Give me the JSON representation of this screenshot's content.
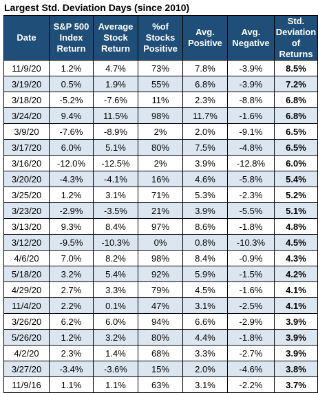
{
  "title": "Largest Std. Deviation Days (since 2010)",
  "headers": [
    "Date",
    "S&P 500 Index Return",
    "Average Stock Return",
    "%of Stocks Positive",
    "Avg. Positive",
    "Avg. Negative",
    "Std. Deviation of Returns"
  ],
  "rows": [
    [
      "11/9/20",
      "1.2%",
      "4.7%",
      "73%",
      "7.8%",
      "-3.9%",
      "8.5%"
    ],
    [
      "3/19/20",
      "0.5%",
      "1.9%",
      "55%",
      "6.8%",
      "-3.9%",
      "7.2%"
    ],
    [
      "3/18/20",
      "-5.2%",
      "-7.6%",
      "11%",
      "2.3%",
      "-8.8%",
      "6.8%"
    ],
    [
      "3/24/20",
      "9.4%",
      "11.5%",
      "98%",
      "11.7%",
      "-1.6%",
      "6.8%"
    ],
    [
      "3/9/20",
      "-7.6%",
      "-8.9%",
      "2%",
      "2.0%",
      "-9.1%",
      "6.5%"
    ],
    [
      "3/17/20",
      "6.0%",
      "5.1%",
      "80%",
      "7.5%",
      "-4.8%",
      "6.5%"
    ],
    [
      "3/16/20",
      "-12.0%",
      "-12.5%",
      "2%",
      "3.9%",
      "-12.8%",
      "6.0%"
    ],
    [
      "3/20/20",
      "-4.3%",
      "-4.1%",
      "16%",
      "4.6%",
      "-5.8%",
      "5.4%"
    ],
    [
      "3/25/20",
      "1.2%",
      "3.1%",
      "71%",
      "5.3%",
      "-2.3%",
      "5.2%"
    ],
    [
      "3/23/20",
      "-2.9%",
      "-3.5%",
      "21%",
      "3.9%",
      "-5.5%",
      "5.1%"
    ],
    [
      "3/13/20",
      "9.3%",
      "8.4%",
      "97%",
      "8.6%",
      "-1.8%",
      "4.8%"
    ],
    [
      "3/12/20",
      "-9.5%",
      "-10.3%",
      "0%",
      "0.8%",
      "-10.3%",
      "4.5%"
    ],
    [
      "4/6/20",
      "7.0%",
      "8.2%",
      "98%",
      "8.4%",
      "-0.9%",
      "4.3%"
    ],
    [
      "5/18/20",
      "3.2%",
      "5.4%",
      "92%",
      "5.9%",
      "-1.5%",
      "4.2%"
    ],
    [
      "4/29/20",
      "2.7%",
      "3.3%",
      "79%",
      "4.5%",
      "-1.6%",
      "4.1%"
    ],
    [
      "11/4/20",
      "2.2%",
      "0.1%",
      "47%",
      "3.1%",
      "-2.5%",
      "4.1%"
    ],
    [
      "3/26/20",
      "6.2%",
      "6.0%",
      "94%",
      "6.6%",
      "-2.9%",
      "3.9%"
    ],
    [
      "5/26/20",
      "1.2%",
      "3.2%",
      "80%",
      "4.4%",
      "-1.8%",
      "3.9%"
    ],
    [
      "4/2/20",
      "2.3%",
      "1.4%",
      "68%",
      "3.3%",
      "-2.7%",
      "3.9%"
    ],
    [
      "3/27/20",
      "-3.4%",
      "-3.6%",
      "15%",
      "2.0%",
      "-4.6%",
      "3.8%"
    ],
    [
      "11/9/16",
      "1.1%",
      "1.1%",
      "63%",
      "3.1%",
      "-2.2%",
      "3.7%"
    ]
  ],
  "colors": {
    "header_bg": "#1f4e79",
    "header_text": "#ffffff",
    "stripe": "#dce6f1"
  }
}
